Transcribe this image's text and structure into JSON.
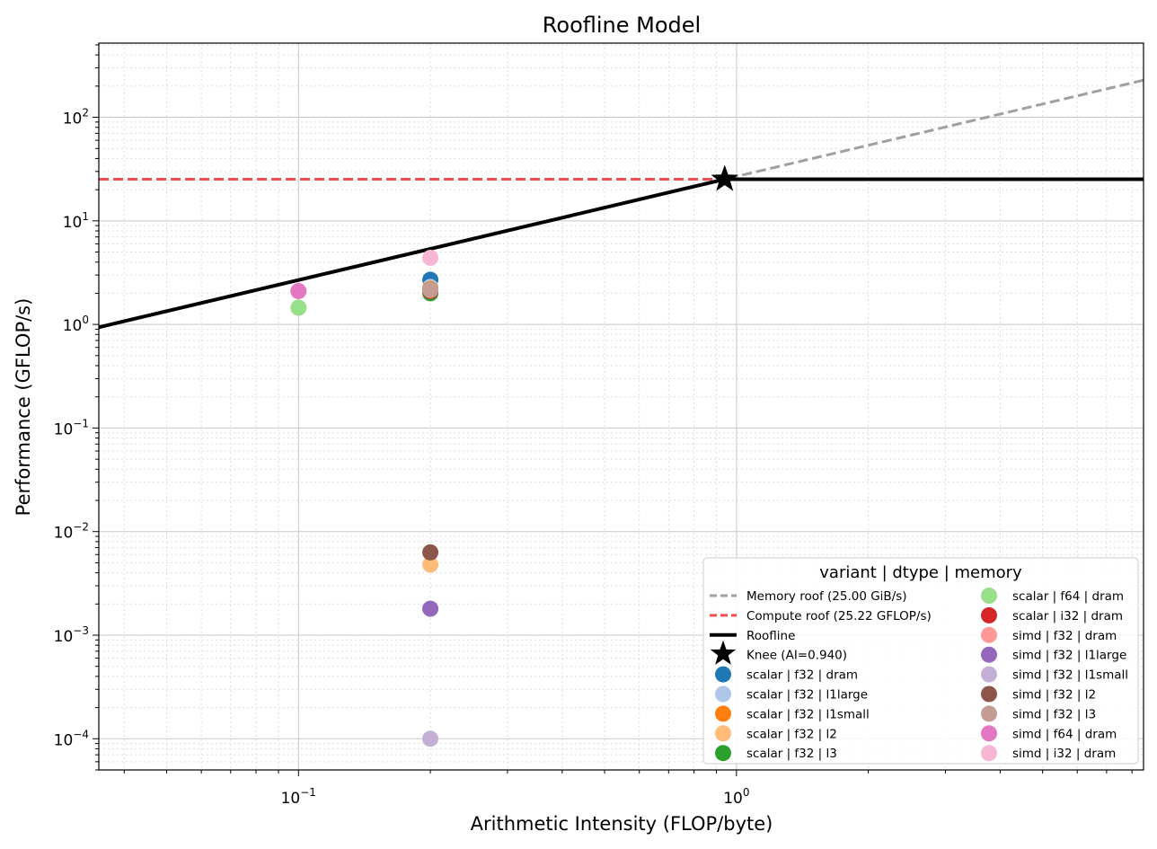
{
  "chart_data": {
    "type": "scatter",
    "title": "Roofline Model",
    "xlabel": "Arithmetic Intensity (FLOP/byte)",
    "ylabel": "Performance (GFLOP/s)",
    "xscale": "log",
    "yscale": "log",
    "xlim": [
      0.035,
      8.5
    ],
    "ylim": [
      5e-05,
      520
    ],
    "grid": true,
    "x_ticks": [
      {
        "value": 0.1,
        "base": "10",
        "exp": "−1"
      },
      {
        "value": 1,
        "base": "10",
        "exp": "0"
      }
    ],
    "y_ticks": [
      {
        "value": 0.0001,
        "base": "10",
        "exp": "−4"
      },
      {
        "value": 0.001,
        "base": "10",
        "exp": "−3"
      },
      {
        "value": 0.01,
        "base": "10",
        "exp": "−2"
      },
      {
        "value": 0.1,
        "base": "10",
        "exp": "−1"
      },
      {
        "value": 1,
        "base": "10",
        "exp": "0"
      },
      {
        "value": 10,
        "base": "10",
        "exp": "1"
      },
      {
        "value": 100,
        "base": "10",
        "exp": "2"
      }
    ],
    "memory_bandwidth": 26.84,
    "compute_peak": 25.22,
    "knee_ai": 0.94,
    "roof_lines": [
      {
        "label": "Memory roof (25.00 GiB/s)",
        "color": "#a0a0a0",
        "style": "dashed",
        "kind": "memory"
      },
      {
        "label": "Compute roof (25.22 GFLOP/s)",
        "color": "#ef4f4f",
        "style": "dashed",
        "kind": "compute"
      },
      {
        "label": "Roofline",
        "color": "#000000",
        "style": "solid",
        "kind": "roofline"
      },
      {
        "label": "Knee (AI=0.940)",
        "color": "#000000",
        "style": "star",
        "kind": "knee"
      }
    ],
    "legend": {
      "title": "variant | dtype | memory",
      "location": "lower right",
      "columns": 2
    },
    "series": [
      {
        "name": "scalar | f32 | dram",
        "color": "#1f77b4",
        "x": 0.2,
        "y": 2.7
      },
      {
        "name": "scalar | f32 | l1large",
        "color": "#aec7e8",
        "x": 0.2,
        "y": 2.3
      },
      {
        "name": "scalar | f32 | l1small",
        "color": "#ff7f0e",
        "x": 0.2,
        "y": 2.2
      },
      {
        "name": "scalar | f32 | l2",
        "color": "#ffbb78",
        "x": 0.2,
        "y": 0.0048
      },
      {
        "name": "scalar | f32 | l3",
        "color": "#2ca02c",
        "x": 0.2,
        "y": 2.0
      },
      {
        "name": "scalar | f64 | dram",
        "color": "#98df8a",
        "x": 0.1,
        "y": 1.45
      },
      {
        "name": "scalar | i32 | dram",
        "color": "#d62728",
        "x": 0.2,
        "y": 2.1
      },
      {
        "name": "simd | f32 | dram",
        "color": "#ff9896",
        "x": 0.2,
        "y": 2.15
      },
      {
        "name": "simd | f32 | l1large",
        "color": "#9467bd",
        "x": 0.2,
        "y": 0.0018
      },
      {
        "name": "simd | f32 | l1small",
        "color": "#c5b0d5",
        "x": 0.2,
        "y": 0.0001
      },
      {
        "name": "simd | f32 | l2",
        "color": "#8c564b",
        "x": 0.2,
        "y": 0.0063
      },
      {
        "name": "simd | f32 | l3",
        "color": "#c49c94",
        "x": 0.2,
        "y": 2.15
      },
      {
        "name": "simd | f64 | dram",
        "color": "#e377c2",
        "x": 0.1,
        "y": 2.1
      },
      {
        "name": "simd | i32 | dram",
        "color": "#f7b6d2",
        "x": 0.2,
        "y": 4.4
      }
    ]
  }
}
